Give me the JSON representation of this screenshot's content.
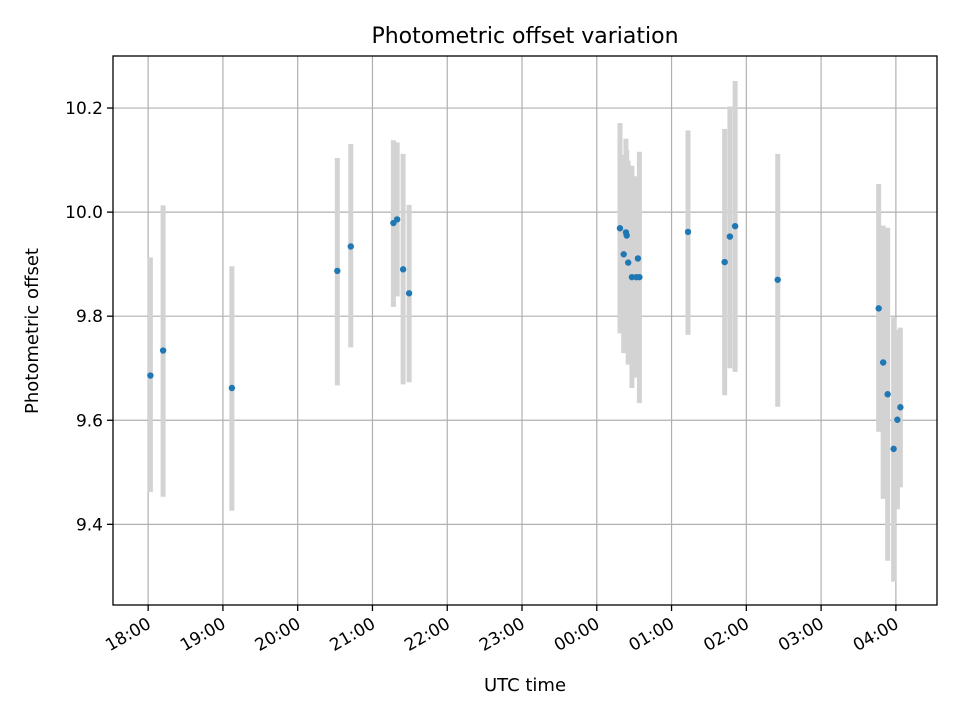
{
  "chart_data": {
    "type": "scatter",
    "title": "Photometric offset variation",
    "xlabel": "UTC time",
    "ylabel": "Photometric offset",
    "x_unit": "hours since 18:00 UTC",
    "xlim": [
      -0.47,
      10.55
    ],
    "ylim": [
      9.245,
      10.3
    ],
    "grid": true,
    "colors": {
      "point": "#1f77b4",
      "errorbar": "#d3d3d3",
      "grid": "#b0b0b0"
    },
    "x_ticks": [
      {
        "value": 0,
        "label": "18:00"
      },
      {
        "value": 1,
        "label": "19:00"
      },
      {
        "value": 2,
        "label": "20:00"
      },
      {
        "value": 3,
        "label": "21:00"
      },
      {
        "value": 4,
        "label": "22:00"
      },
      {
        "value": 5,
        "label": "23:00"
      },
      {
        "value": 6,
        "label": "00:00"
      },
      {
        "value": 7,
        "label": "01:00"
      },
      {
        "value": 8,
        "label": "02:00"
      },
      {
        "value": 9,
        "label": "03:00"
      },
      {
        "value": 10,
        "label": "04:00"
      }
    ],
    "y_ticks": [
      {
        "value": 9.4,
        "label": "9.4"
      },
      {
        "value": 9.6,
        "label": "9.6"
      },
      {
        "value": 9.8,
        "label": "9.8"
      },
      {
        "value": 10.0,
        "label": "10.0"
      },
      {
        "value": 10.2,
        "label": "10.2"
      }
    ],
    "points": [
      {
        "x": 0.03,
        "y": 9.686,
        "err_low": 9.462,
        "err_high": 9.913
      },
      {
        "x": 0.2,
        "y": 9.734,
        "err_low": 9.453,
        "err_high": 10.013
      },
      {
        "x": 1.12,
        "y": 9.662,
        "err_low": 9.426,
        "err_high": 9.896
      },
      {
        "x": 2.53,
        "y": 9.887,
        "err_low": 9.667,
        "err_high": 10.104
      },
      {
        "x": 2.71,
        "y": 9.934,
        "err_low": 9.74,
        "err_high": 10.131
      },
      {
        "x": 3.28,
        "y": 9.979,
        "err_low": 9.818,
        "err_high": 10.138
      },
      {
        "x": 3.33,
        "y": 9.986,
        "err_low": 9.838,
        "err_high": 10.134
      },
      {
        "x": 3.41,
        "y": 9.89,
        "err_low": 9.669,
        "err_high": 10.112
      },
      {
        "x": 3.49,
        "y": 9.844,
        "err_low": 9.673,
        "err_high": 10.014
      },
      {
        "x": 6.31,
        "y": 9.969,
        "err_low": 9.767,
        "err_high": 10.171
      },
      {
        "x": 6.36,
        "y": 9.919,
        "err_low": 9.729,
        "err_high": 10.11
      },
      {
        "x": 6.39,
        "y": 9.961,
        "err_low": 9.779,
        "err_high": 10.141
      },
      {
        "x": 6.4,
        "y": 9.955,
        "err_low": 9.79,
        "err_high": 10.119
      },
      {
        "x": 6.42,
        "y": 9.903,
        "err_low": 9.707,
        "err_high": 10.099
      },
      {
        "x": 6.47,
        "y": 9.875,
        "err_low": 9.662,
        "err_high": 10.089
      },
      {
        "x": 6.53,
        "y": 9.875,
        "err_low": 9.682,
        "err_high": 10.069
      },
      {
        "x": 6.55,
        "y": 9.911,
        "err_low": 9.756,
        "err_high": 10.066
      },
      {
        "x": 6.57,
        "y": 9.875,
        "err_low": 9.633,
        "err_high": 10.116
      },
      {
        "x": 7.22,
        "y": 9.962,
        "err_low": 9.764,
        "err_high": 10.157
      },
      {
        "x": 7.71,
        "y": 9.904,
        "err_low": 9.648,
        "err_high": 10.16
      },
      {
        "x": 7.78,
        "y": 9.953,
        "err_low": 9.7,
        "err_high": 10.203
      },
      {
        "x": 7.85,
        "y": 9.973,
        "err_low": 9.693,
        "err_high": 10.252
      },
      {
        "x": 8.42,
        "y": 9.87,
        "err_low": 9.626,
        "err_high": 10.112
      },
      {
        "x": 9.77,
        "y": 9.815,
        "err_low": 9.578,
        "err_high": 10.054
      },
      {
        "x": 9.83,
        "y": 9.711,
        "err_low": 9.449,
        "err_high": 9.974
      },
      {
        "x": 9.89,
        "y": 9.65,
        "err_low": 9.33,
        "err_high": 9.97
      },
      {
        "x": 9.97,
        "y": 9.545,
        "err_low": 9.29,
        "err_high": 9.798
      },
      {
        "x": 10.02,
        "y": 9.601,
        "err_low": 9.429,
        "err_high": 9.774
      },
      {
        "x": 10.06,
        "y": 9.625,
        "err_low": 9.471,
        "err_high": 9.778
      }
    ]
  }
}
